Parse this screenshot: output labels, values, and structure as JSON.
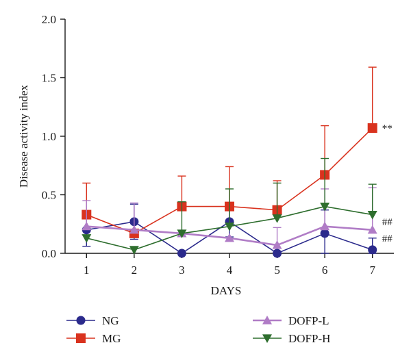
{
  "chart_data": {
    "type": "line",
    "xlabel": "DAYS",
    "ylabel": "Disease activity index",
    "categories": [
      1,
      2,
      3,
      4,
      5,
      6,
      7
    ],
    "ylim": [
      0,
      2.0
    ],
    "yticks": [
      0.0,
      0.5,
      1.0,
      1.5,
      2.0
    ],
    "ytick_labels": [
      "0.0",
      "0.5",
      "1.0",
      "1.5",
      "2.0"
    ],
    "grid": false,
    "legend_position": "bottom",
    "series": [
      {
        "name": "NG",
        "color": "#2b2a8c",
        "marker": "circle",
        "values": [
          0.2,
          0.27,
          0.0,
          0.27,
          0.0,
          0.17,
          0.03
        ],
        "err_upper": [
          0.34,
          0.42,
          0.0,
          0.4,
          0.0,
          0.37,
          0.13
        ],
        "err_lower": [
          0.06,
          0.12,
          0.0,
          0.14,
          0.0,
          0.0,
          0.0
        ]
      },
      {
        "name": "MG",
        "color": "#d9321e",
        "marker": "square",
        "values": [
          0.33,
          0.17,
          0.4,
          0.4,
          0.37,
          0.67,
          1.07
        ],
        "err_upper": [
          0.6,
          0.17,
          0.66,
          0.74,
          0.62,
          1.09,
          1.59
        ],
        "err_lower": [
          0.33,
          0.17,
          0.4,
          0.4,
          0.37,
          0.67,
          1.07
        ]
      },
      {
        "name": "DOFP-L",
        "color": "#b07cc6",
        "marker": "triangle-up",
        "values": [
          0.23,
          0.2,
          0.17,
          0.13,
          0.07,
          0.23,
          0.2
        ],
        "err_upper": [
          0.45,
          0.43,
          0.17,
          0.13,
          0.22,
          0.55,
          0.56
        ],
        "err_lower": [
          0.23,
          0.2,
          0.17,
          0.13,
          0.07,
          0.23,
          0.2
        ]
      },
      {
        "name": "DOFP-H",
        "color": "#2e6e2e",
        "marker": "triangle-down",
        "values": [
          0.13,
          0.03,
          0.17,
          0.23,
          0.3,
          0.4,
          0.33
        ],
        "err_upper": [
          0.13,
          0.03,
          0.44,
          0.55,
          0.6,
          0.81,
          0.59
        ],
        "err_lower": [
          0.13,
          0.03,
          0.17,
          0.23,
          0.3,
          0.4,
          0.33
        ]
      }
    ],
    "annotations": [
      {
        "text": "**",
        "x": 7,
        "y": 1.07
      },
      {
        "text": "##",
        "x": 7,
        "y": 0.27
      },
      {
        "text": "##",
        "x": 7,
        "y": 0.13
      }
    ]
  }
}
